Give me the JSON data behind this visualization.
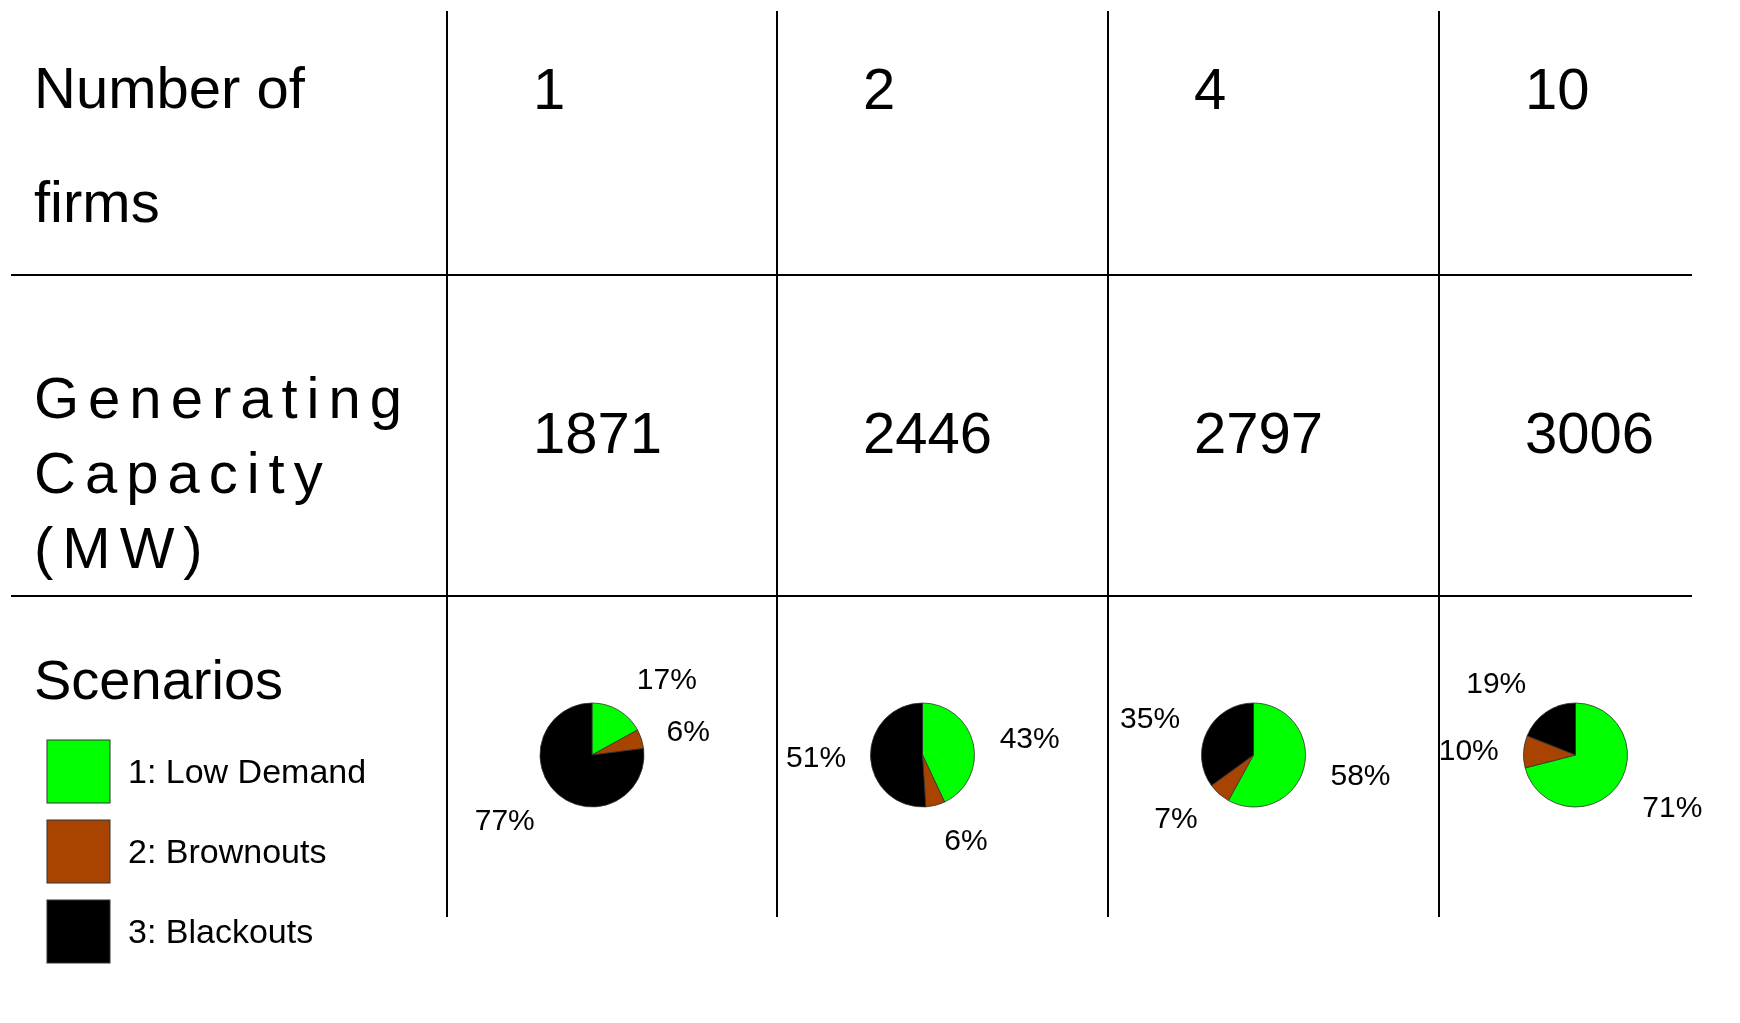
{
  "chart_data": [
    {
      "type": "other",
      "title": "Scenarios",
      "annotations": [
        "Number of firms",
        "Generating Capacity (MW)"
      ]
    },
    {
      "type": "pie",
      "title": "1",
      "subtitle": "1871",
      "categories": [
        "1: Low Demand",
        "2: Brownouts",
        "3: Blackouts"
      ],
      "values": [
        17,
        6,
        77
      ],
      "colors": [
        "#00ff00",
        "#a94400",
        "#000000"
      ],
      "value_labels": [
        "17%",
        "6%",
        "77%"
      ],
      "legend": "left"
    },
    {
      "type": "pie",
      "title": "2",
      "subtitle": "2446",
      "categories": [
        null,
        null,
        null
      ],
      "values": [
        43,
        6,
        51
      ],
      "colors": [
        "#00ff00",
        "#a94400",
        "#000000"
      ],
      "value_labels": [
        "43%",
        "6%",
        "51%"
      ]
    },
    {
      "type": "pie",
      "title": "4",
      "subtitle": "2797",
      "categories": [
        null,
        null,
        null
      ],
      "values": [
        58,
        7,
        35
      ],
      "colors": [
        "#00ff00",
        "#a94400",
        "#000000"
      ],
      "value_labels": [
        "58%",
        "7%",
        "35%"
      ]
    },
    {
      "type": "pie",
      "title": "10",
      "subtitle": "3006",
      "categories": [
        null,
        null,
        null
      ],
      "values": [
        71,
        10,
        19
      ],
      "colors": [
        "#00ff00",
        "#a94400",
        "#000000"
      ],
      "value_labels": [
        "71%",
        "10%",
        "19%"
      ]
    }
  ]
}
